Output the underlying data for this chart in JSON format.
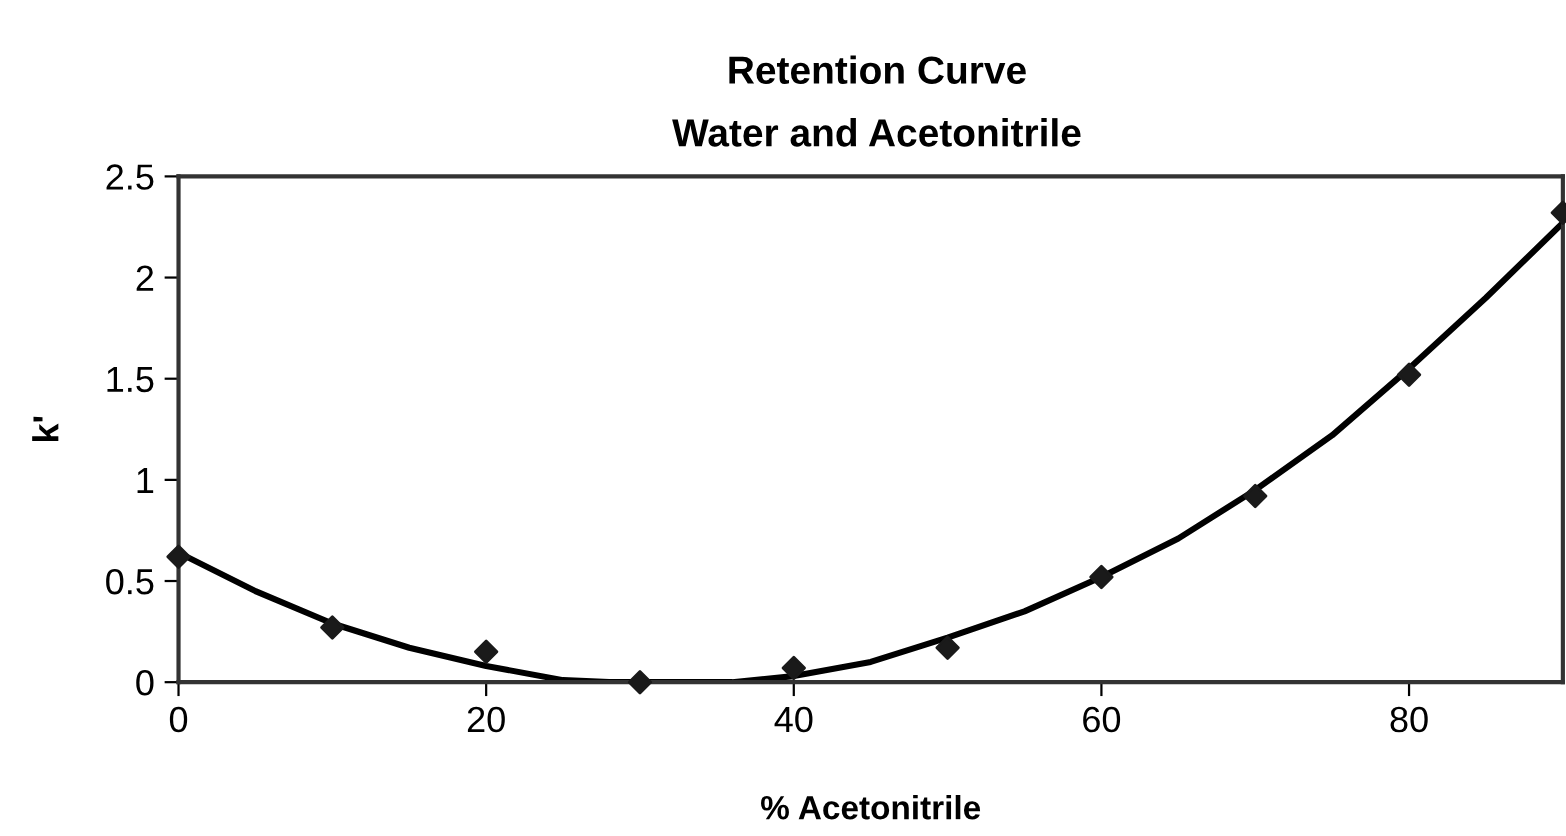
{
  "chart_data": {
    "type": "scatter",
    "title": "Retention Curve",
    "subtitle": "Water and Acetonitrile",
    "xlabel": "% Acetonitrile",
    "ylabel": "k'",
    "x": [
      0,
      10,
      20,
      30,
      40,
      50,
      60,
      70,
      80,
      90
    ],
    "series": [
      {
        "color": "#1a1a1a",
        "marker": "diamond",
        "values": [
          0.62,
          0.27,
          0.15,
          0.0,
          0.07,
          0.17,
          0.52,
          0.92,
          1.52,
          2.32
        ]
      },
      {
        "type": "line",
        "color": "#000000",
        "marker": "none",
        "x": [
          0,
          5,
          10,
          15,
          20,
          25,
          28,
          32,
          36,
          40,
          45,
          50,
          55,
          60,
          65,
          70,
          75,
          80,
          85,
          90
        ],
        "values": [
          0.64,
          0.45,
          0.29,
          0.17,
          0.08,
          0.01,
          0,
          0,
          0,
          0.03,
          0.1,
          0.22,
          0.35,
          0.52,
          0.71,
          0.95,
          1.22,
          1.55,
          1.9,
          2.27
        ]
      }
    ],
    "xlim": [
      0,
      90
    ],
    "ylim": [
      0,
      2.5
    ],
    "xticks": [
      0,
      20,
      40,
      60,
      80
    ],
    "yticks": [
      0,
      0.5,
      1,
      1.5,
      2,
      2.5
    ],
    "grid": false,
    "legend": false,
    "line_style": "solid"
  }
}
